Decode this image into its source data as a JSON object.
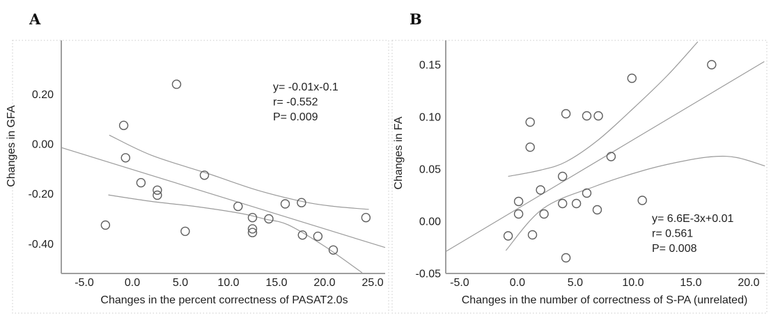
{
  "figure_type": "two-panel scatter correlation figure",
  "colors": {
    "background": "#ffffff",
    "axis": "#9e9e9e",
    "trend_line": "#9b9b9b",
    "marker_stroke": "#5f5f5f",
    "text": "#1f1f1f",
    "panel_border": "#c9c9c9"
  },
  "chart_data": [
    {
      "type": "scatter",
      "panel_label": "A",
      "xlabel": "Changes in the percent correctness of PASAT2.0s",
      "ylabel": "Changes in GFA",
      "xlim": [
        -7.39,
        26.3
      ],
      "ylim": [
        -0.519,
        0.416
      ],
      "grid": false,
      "x_tick_values": [
        -5.0,
        0.0,
        5.0,
        10.0,
        15.0,
        20.0,
        25.0
      ],
      "x_tick_labels": [
        "-5.0",
        "0.0",
        "5.0",
        "10.0",
        "15.0",
        "20.0",
        "25.0"
      ],
      "y_tick_values": [
        0.2,
        0.0,
        -0.2,
        -0.4
      ],
      "y_tick_labels": [
        "0.20",
        "0.00",
        "-0.20",
        "-0.40"
      ],
      "points": [
        [
          -2.8,
          -0.325
        ],
        [
          -0.9,
          0.075
        ],
        [
          -0.7,
          -0.055
        ],
        [
          0.9,
          -0.155
        ],
        [
          2.6,
          -0.185
        ],
        [
          2.6,
          -0.205
        ],
        [
          4.6,
          0.24
        ],
        [
          5.5,
          -0.35
        ],
        [
          7.5,
          -0.125
        ],
        [
          11.0,
          -0.25
        ],
        [
          12.5,
          -0.295
        ],
        [
          12.5,
          -0.34
        ],
        [
          12.5,
          -0.355
        ],
        [
          14.2,
          -0.3
        ],
        [
          15.9,
          -0.24
        ],
        [
          17.6,
          -0.235
        ],
        [
          17.7,
          -0.365
        ],
        [
          19.3,
          -0.37
        ],
        [
          20.9,
          -0.425
        ],
        [
          24.3,
          -0.295
        ]
      ],
      "regression_line": [
        [
          -7.39,
          -0.014
        ],
        [
          26.3,
          -0.415
        ]
      ],
      "ci_upper": [
        [
          -2.4,
          0.036
        ],
        [
          2.0,
          -0.045
        ],
        [
          8.0,
          -0.12
        ],
        [
          13.0,
          -0.185
        ],
        [
          17.9,
          -0.232
        ],
        [
          21.0,
          -0.25
        ],
        [
          24.6,
          -0.262
        ]
      ],
      "ci_lower": [
        [
          -2.5,
          -0.204
        ],
        [
          2.0,
          -0.23
        ],
        [
          6.7,
          -0.251
        ],
        [
          11.4,
          -0.279
        ],
        [
          13.8,
          -0.301
        ],
        [
          16.2,
          -0.324
        ],
        [
          20.0,
          -0.41
        ],
        [
          23.9,
          -0.516
        ]
      ],
      "annotation": {
        "equation": "y= -0.01x-0.1",
        "r": "r= -0.552",
        "p": "P= 0.009"
      }
    },
    {
      "type": "scatter",
      "panel_label": "B",
      "xlabel": "Changes in the number of correctness of S-PA (unrelated)",
      "ylabel": "Changes in FA",
      "xlim": [
        -6.2,
        21.39
      ],
      "ylim": [
        -0.05,
        0.1733
      ],
      "grid": false,
      "x_tick_values": [
        -5.0,
        0.0,
        5.0,
        10.0,
        15.0,
        20.0
      ],
      "x_tick_labels": [
        "-5.0",
        "0.0",
        "5.0",
        "10.0",
        "15.0",
        "20.0"
      ],
      "y_tick_values": [
        0.15,
        0.1,
        0.05,
        0.0,
        -0.05
      ],
      "y_tick_labels": [
        "0.15",
        "0.10",
        "0.05",
        "0.00",
        "-0.05"
      ],
      "points": [
        [
          1.1,
          0.095
        ],
        [
          4.2,
          0.103
        ],
        [
          6.0,
          0.101
        ],
        [
          7.0,
          0.101
        ],
        [
          9.9,
          0.137
        ],
        [
          16.8,
          0.15
        ],
        [
          1.1,
          0.071
        ],
        [
          8.1,
          0.062
        ],
        [
          3.9,
          0.043
        ],
        [
          2.0,
          0.03
        ],
        [
          0.1,
          0.019
        ],
        [
          6.0,
          0.027
        ],
        [
          3.9,
          0.017
        ],
        [
          5.1,
          0.017
        ],
        [
          6.9,
          0.011
        ],
        [
          10.8,
          0.02
        ],
        [
          0.1,
          0.007
        ],
        [
          2.3,
          0.007
        ],
        [
          -0.8,
          -0.014
        ],
        [
          1.3,
          -0.013
        ],
        [
          4.2,
          -0.035
        ]
      ],
      "regression_line": [
        [
          -6.2,
          -0.029
        ],
        [
          21.35,
          0.153
        ]
      ],
      "ci_upper": [
        [
          -0.8,
          0.043
        ],
        [
          2.0,
          0.049
        ],
        [
          4.2,
          0.057
        ],
        [
          7.0,
          0.078
        ],
        [
          10.2,
          0.11
        ],
        [
          13.0,
          0.14
        ],
        [
          15.6,
          0.172
        ]
      ],
      "ci_lower": [
        [
          -1.0,
          -0.028
        ],
        [
          2.2,
          0.012
        ],
        [
          6.6,
          0.033
        ],
        [
          11.0,
          0.049
        ],
        [
          14.5,
          0.058
        ],
        [
          17.0,
          0.062
        ],
        [
          19.0,
          0.061
        ],
        [
          21.4,
          0.053
        ]
      ],
      "annotation": {
        "equation": "y= 6.6E-3x+0.01",
        "r": "r= 0.561",
        "p": "P= 0.008"
      }
    }
  ]
}
